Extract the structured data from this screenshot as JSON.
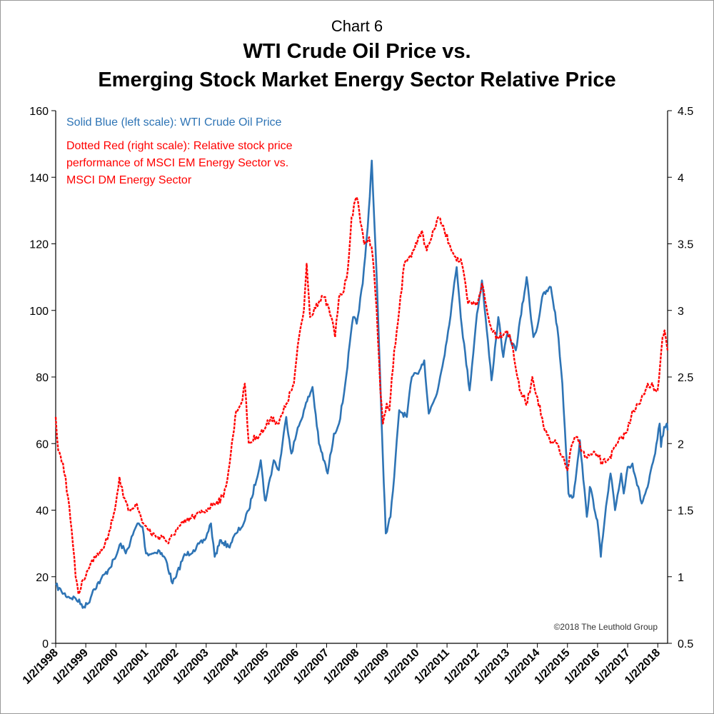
{
  "header": {
    "chart_label": "Chart 6",
    "title_line1": "WTI Crude Oil Price vs.",
    "title_line2": "Emerging Stock Market Energy Sector Relative Price"
  },
  "legend": {
    "blue": "Solid Blue (left scale): WTI Crude Oil Price",
    "red_lines": [
      "Dotted Red (right scale): Relative stock price",
      "performance of MSCI EM Energy Sector vs.",
      "MSCI DM Energy Sector"
    ]
  },
  "credit": "©2018 The Leuthold Group",
  "colors": {
    "wti": "#2e74b5",
    "relative": "#ff0000",
    "axis": "#000000"
  },
  "chart_data": {
    "type": "line",
    "x_tick_labels": [
      "1/2/1998",
      "1/2/1999",
      "1/2/2000",
      "1/2/2001",
      "1/2/2002",
      "1/2/2003",
      "1/2/2004",
      "1/2/2005",
      "1/2/2006",
      "1/2/2007",
      "1/2/2008",
      "1/2/2009",
      "1/2/2010",
      "1/2/2011",
      "1/2/2012",
      "1/2/2013",
      "1/2/2014",
      "1/2/2015",
      "1/2/2016",
      "1/2/2017",
      "1/2/2018"
    ],
    "xlim": [
      "1998-01-02",
      "2018-05-01"
    ],
    "y_left": {
      "ticks": [
        "0",
        "20",
        "40",
        "60",
        "80",
        "100",
        "120",
        "140",
        "160"
      ],
      "lim": [
        0,
        160
      ]
    },
    "y_right": {
      "ticks": [
        "0.5",
        "1",
        "1.5",
        "2",
        "2.5",
        "3",
        "3.5",
        "4",
        "4.5"
      ],
      "lim": [
        0.5,
        4.5
      ]
    },
    "grid": false,
    "series": [
      {
        "name": "WTI Crude Oil Price",
        "axis": "left",
        "style": "solid",
        "points": [
          [
            "1998-01-02",
            17.5
          ],
          [
            "1998-03-15",
            15.5
          ],
          [
            "1998-06-01",
            14
          ],
          [
            "1998-09-01",
            13.5
          ],
          [
            "1998-12-10",
            11
          ],
          [
            "1999-02-01",
            12
          ],
          [
            "1999-04-01",
            16
          ],
          [
            "1999-07-01",
            19
          ],
          [
            "1999-10-01",
            22
          ],
          [
            "2000-01-02",
            26
          ],
          [
            "2000-03-01",
            30
          ],
          [
            "2000-05-01",
            27
          ],
          [
            "2000-09-20",
            36
          ],
          [
            "2000-11-20",
            35
          ],
          [
            "2001-01-02",
            27
          ],
          [
            "2001-04-01",
            27
          ],
          [
            "2001-06-01",
            28
          ],
          [
            "2001-09-01",
            25
          ],
          [
            "2001-11-20",
            18
          ],
          [
            "2002-01-02",
            20
          ],
          [
            "2002-04-01",
            26
          ],
          [
            "2002-08-01",
            28
          ],
          [
            "2002-12-15",
            31
          ],
          [
            "2003-03-01",
            36
          ],
          [
            "2003-04-15",
            26
          ],
          [
            "2003-07-01",
            31
          ],
          [
            "2003-10-01",
            29
          ],
          [
            "2004-01-02",
            33
          ],
          [
            "2004-04-01",
            36
          ],
          [
            "2004-06-01",
            40
          ],
          [
            "2004-10-25",
            55
          ],
          [
            "2004-12-15",
            43
          ],
          [
            "2005-01-02",
            44
          ],
          [
            "2005-04-01",
            55
          ],
          [
            "2005-06-01",
            52
          ],
          [
            "2005-08-30",
            68
          ],
          [
            "2005-11-01",
            57
          ],
          [
            "2006-01-02",
            63
          ],
          [
            "2006-04-01",
            70
          ],
          [
            "2006-07-15",
            77
          ],
          [
            "2006-10-01",
            60
          ],
          [
            "2007-01-15",
            51
          ],
          [
            "2007-04-01",
            63
          ],
          [
            "2007-06-01",
            66
          ],
          [
            "2007-08-01",
            75
          ],
          [
            "2007-11-20",
            98
          ],
          [
            "2008-01-02",
            96
          ],
          [
            "2008-03-15",
            108
          ],
          [
            "2008-05-15",
            125
          ],
          [
            "2008-07-03",
            145
          ],
          [
            "2008-09-01",
            110
          ],
          [
            "2008-11-01",
            65
          ],
          [
            "2008-12-20",
            33
          ],
          [
            "2009-02-15",
            38
          ],
          [
            "2009-04-01",
            50
          ],
          [
            "2009-06-01",
            70
          ],
          [
            "2009-09-01",
            68
          ],
          [
            "2009-11-01",
            80
          ],
          [
            "2010-01-02",
            81
          ],
          [
            "2010-04-01",
            85
          ],
          [
            "2010-05-25",
            69
          ],
          [
            "2010-09-01",
            75
          ],
          [
            "2010-12-31",
            91
          ],
          [
            "2011-03-01",
            102
          ],
          [
            "2011-04-29",
            113
          ],
          [
            "2011-07-01",
            95
          ],
          [
            "2011-10-03",
            76
          ],
          [
            "2011-12-31",
            99
          ],
          [
            "2012-03-01",
            109
          ],
          [
            "2012-06-25",
            79
          ],
          [
            "2012-09-15",
            98
          ],
          [
            "2012-11-15",
            86
          ],
          [
            "2013-01-02",
            93
          ],
          [
            "2013-04-15",
            88
          ],
          [
            "2013-08-25",
            110
          ],
          [
            "2013-11-15",
            92
          ],
          [
            "2014-01-02",
            95
          ],
          [
            "2014-03-01",
            104
          ],
          [
            "2014-06-15",
            107
          ],
          [
            "2014-09-01",
            95
          ],
          [
            "2014-11-01",
            78
          ],
          [
            "2015-01-15",
            45
          ],
          [
            "2015-03-15",
            44
          ],
          [
            "2015-06-01",
            61
          ],
          [
            "2015-08-25",
            38
          ],
          [
            "2015-10-01",
            47
          ],
          [
            "2015-12-31",
            37
          ],
          [
            "2016-02-11",
            26
          ],
          [
            "2016-04-01",
            38
          ],
          [
            "2016-06-08",
            51
          ],
          [
            "2016-08-01",
            40
          ],
          [
            "2016-10-15",
            51
          ],
          [
            "2016-11-15",
            45
          ],
          [
            "2017-01-02",
            53
          ],
          [
            "2017-03-01",
            54
          ],
          [
            "2017-06-21",
            42
          ],
          [
            "2017-09-01",
            47
          ],
          [
            "2017-12-01",
            57
          ],
          [
            "2018-01-25",
            66
          ],
          [
            "2018-02-10",
            59
          ],
          [
            "2018-03-20",
            65
          ],
          [
            "2018-04-20",
            66
          ],
          [
            "2018-05-01",
            64
          ]
        ]
      },
      {
        "name": "Relative stock price performance of MSCI EM Energy Sector vs. MSCI DM Energy Sector",
        "axis": "right",
        "style": "dotted",
        "points": [
          [
            "1998-01-02",
            2.2
          ],
          [
            "1998-02-01",
            1.95
          ],
          [
            "1998-04-01",
            1.85
          ],
          [
            "1998-06-01",
            1.6
          ],
          [
            "1998-07-15",
            1.35
          ],
          [
            "1998-09-01",
            1.0
          ],
          [
            "1998-10-05",
            0.87
          ],
          [
            "1998-12-01",
            0.98
          ],
          [
            "1999-02-01",
            1.05
          ],
          [
            "1999-04-15",
            1.15
          ],
          [
            "1999-07-01",
            1.2
          ],
          [
            "1999-10-01",
            1.3
          ],
          [
            "2000-01-02",
            1.55
          ],
          [
            "2000-02-15",
            1.75
          ],
          [
            "2000-04-01",
            1.6
          ],
          [
            "2000-06-01",
            1.5
          ],
          [
            "2000-09-01",
            1.55
          ],
          [
            "2000-12-01",
            1.4
          ],
          [
            "2001-02-01",
            1.35
          ],
          [
            "2001-05-01",
            1.3
          ],
          [
            "2001-08-01",
            1.3
          ],
          [
            "2001-10-01",
            1.25
          ],
          [
            "2001-12-31",
            1.35
          ],
          [
            "2002-04-01",
            1.4
          ],
          [
            "2002-08-01",
            1.45
          ],
          [
            "2002-12-31",
            1.5
          ],
          [
            "2003-04-01",
            1.55
          ],
          [
            "2003-08-01",
            1.6
          ],
          [
            "2003-10-01",
            1.8
          ],
          [
            "2004-01-02",
            2.25
          ],
          [
            "2004-03-01",
            2.3
          ],
          [
            "2004-04-15",
            2.45
          ],
          [
            "2004-06-01",
            2.0
          ],
          [
            "2004-09-01",
            2.05
          ],
          [
            "2004-12-01",
            2.1
          ],
          [
            "2005-03-01",
            2.2
          ],
          [
            "2005-06-01",
            2.15
          ],
          [
            "2005-09-01",
            2.3
          ],
          [
            "2005-12-01",
            2.45
          ],
          [
            "2006-02-01",
            2.8
          ],
          [
            "2006-04-01",
            3.0
          ],
          [
            "2006-05-05",
            3.35
          ],
          [
            "2006-06-15",
            2.95
          ],
          [
            "2006-09-01",
            3.05
          ],
          [
            "2006-12-01",
            3.1
          ],
          [
            "2007-03-01",
            2.95
          ],
          [
            "2007-04-15",
            2.8
          ],
          [
            "2007-06-01",
            3.1
          ],
          [
            "2007-08-01",
            3.15
          ],
          [
            "2007-09-15",
            3.3
          ],
          [
            "2007-11-01",
            3.7
          ],
          [
            "2007-12-31",
            3.85
          ],
          [
            "2008-02-01",
            3.75
          ],
          [
            "2008-04-01",
            3.5
          ],
          [
            "2008-06-01",
            3.55
          ],
          [
            "2008-07-15",
            3.4
          ],
          [
            "2008-09-01",
            3.0
          ],
          [
            "2008-10-15",
            2.4
          ],
          [
            "2008-11-15",
            2.15
          ],
          [
            "2008-12-31",
            2.3
          ],
          [
            "2009-02-01",
            2.25
          ],
          [
            "2009-04-01",
            2.7
          ],
          [
            "2009-06-01",
            3.0
          ],
          [
            "2009-08-01",
            3.35
          ],
          [
            "2009-10-01",
            3.4
          ],
          [
            "2010-01-02",
            3.5
          ],
          [
            "2010-03-01",
            3.6
          ],
          [
            "2010-05-01",
            3.45
          ],
          [
            "2010-07-01",
            3.55
          ],
          [
            "2010-09-15",
            3.7
          ],
          [
            "2010-12-01",
            3.6
          ],
          [
            "2011-02-01",
            3.5
          ],
          [
            "2011-04-15",
            3.4
          ],
          [
            "2011-07-01",
            3.35
          ],
          [
            "2011-09-15",
            3.05
          ],
          [
            "2011-12-31",
            3.05
          ],
          [
            "2012-03-01",
            3.2
          ],
          [
            "2012-06-01",
            2.9
          ],
          [
            "2012-09-01",
            2.8
          ],
          [
            "2012-12-31",
            2.85
          ],
          [
            "2013-03-01",
            2.75
          ],
          [
            "2013-06-01",
            2.4
          ],
          [
            "2013-09-01",
            2.3
          ],
          [
            "2013-11-01",
            2.5
          ],
          [
            "2014-01-02",
            2.35
          ],
          [
            "2014-04-01",
            2.1
          ],
          [
            "2014-06-15",
            2.0
          ],
          [
            "2014-09-01",
            2.0
          ],
          [
            "2014-11-01",
            1.9
          ],
          [
            "2015-01-02",
            1.8
          ],
          [
            "2015-03-01",
            2.0
          ],
          [
            "2015-05-01",
            2.05
          ],
          [
            "2015-08-01",
            1.9
          ],
          [
            "2015-12-31",
            1.92
          ],
          [
            "2016-03-01",
            1.85
          ],
          [
            "2016-06-01",
            1.9
          ],
          [
            "2016-09-01",
            2.0
          ],
          [
            "2016-12-31",
            2.1
          ],
          [
            "2017-03-01",
            2.25
          ],
          [
            "2017-06-01",
            2.3
          ],
          [
            "2017-09-01",
            2.45
          ],
          [
            "2017-12-31",
            2.4
          ],
          [
            "2018-02-01",
            2.6
          ],
          [
            "2018-03-01",
            2.8
          ],
          [
            "2018-03-25",
            2.85
          ],
          [
            "2018-05-01",
            2.7
          ]
        ]
      }
    ]
  }
}
